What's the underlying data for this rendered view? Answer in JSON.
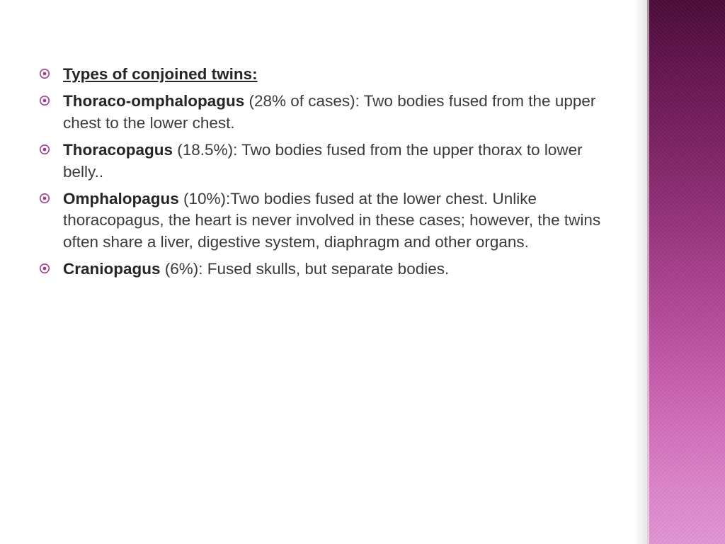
{
  "bullet_color": "#a23b8f",
  "items": [
    {
      "title": "Types of conjoined twins:",
      "is_heading": true
    },
    {
      "term": "Thoraco-omphalopagus",
      "rest": " (28% of cases): Two bodies fused from the upper chest to the lower chest."
    },
    {
      "term": "Thoracopagus",
      "rest": " (18.5%): Two bodies fused from the upper thorax to lower belly.."
    },
    {
      "term": "Omphalopagus",
      "rest": " (10%):Two bodies fused at the lower chest. Unlike thoracopagus, the heart is never involved in these cases; however, the twins often share a liver, digestive system, diaphragm and other organs."
    },
    {
      "term": "Craniopagus",
      "rest": " (6%): Fused skulls, but separate bodies."
    }
  ],
  "band": {
    "gradient_top": "#4a0b38",
    "gradient_bottom": "#e296d4"
  }
}
